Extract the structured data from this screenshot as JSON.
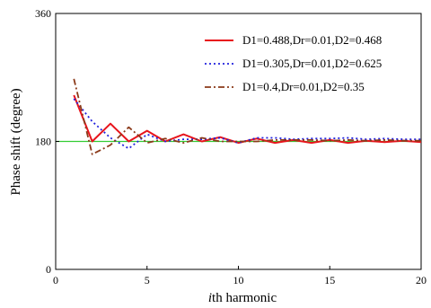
{
  "chart_data": {
    "type": "line",
    "xlabel_prefix": "i",
    "xlabel_rest": "th harmonic",
    "ylabel": "Phase shift (degree)",
    "xlim": [
      0,
      20
    ],
    "ylim": [
      0,
      360
    ],
    "x_ticks": [
      "0",
      "5",
      "10",
      "15",
      "20"
    ],
    "y_ticks": [
      "0",
      "180",
      "360"
    ],
    "grid": false,
    "legend_position": "top-right",
    "reference_line": {
      "y": 180,
      "color": "#33cc33"
    },
    "series": [
      {
        "name": "D1=0.488,Dr=0.01,D2=0.468",
        "color": "#e8141c",
        "style": "solid",
        "x": [
          1,
          2,
          3,
          4,
          5,
          6,
          7,
          8,
          9,
          10,
          11,
          12,
          13,
          14,
          15,
          16,
          17,
          18,
          19,
          20
        ],
        "y": [
          245,
          180,
          205,
          180,
          195,
          180,
          190,
          180,
          186,
          178,
          184,
          178,
          182,
          178,
          182,
          178,
          181,
          179,
          181,
          179
        ]
      },
      {
        "name": "D1=0.305,Dr=0.01,D2=0.625",
        "color": "#2222dd",
        "style": "dotted",
        "x": [
          1,
          2,
          3,
          4,
          5,
          6,
          7,
          8,
          9,
          10,
          11,
          12,
          13,
          14,
          15,
          16,
          17,
          18,
          19,
          20
        ],
        "y": [
          240,
          208,
          185,
          170,
          190,
          180,
          183,
          183,
          185,
          178,
          185,
          185,
          183,
          184,
          184,
          185,
          183,
          184,
          183,
          183
        ]
      },
      {
        "name": "D1=0.4,Dr=0.01,D2=0.35",
        "color": "#8b3a1a",
        "style": "dashdot",
        "x": [
          1,
          2,
          3,
          4,
          5,
          6,
          7,
          8,
          9,
          10,
          11,
          12,
          13,
          14,
          15,
          16,
          17,
          18,
          19,
          20
        ],
        "y": [
          268,
          162,
          175,
          200,
          178,
          184,
          178,
          185,
          180,
          180,
          180,
          182,
          182,
          182,
          181,
          182,
          181,
          182,
          181,
          181
        ]
      }
    ]
  }
}
